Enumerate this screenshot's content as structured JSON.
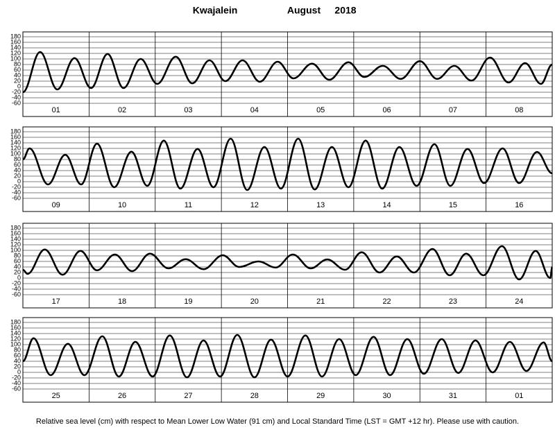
{
  "header": {
    "station": "Kwajalein",
    "month": "August",
    "year": "2018"
  },
  "footer": "Relative sea level (cm) with respect to Mean Lower Low Water (91 cm) and Local Standard Time (LST = GMT +12 hr). Please use with caution.",
  "chart_data": [
    {
      "type": "line",
      "categories": [
        "01",
        "02",
        "03",
        "04",
        "05",
        "06",
        "07",
        "08"
      ],
      "xlim": [
        0,
        8
      ],
      "ylim": [
        -60,
        180
      ],
      "yticks": [
        -60,
        -40,
        -20,
        0,
        20,
        40,
        60,
        80,
        100,
        120,
        140,
        160,
        180
      ],
      "grid": true,
      "color": "#000000",
      "x": [
        0,
        0.26,
        0.52,
        0.78,
        1.03,
        1.28,
        1.52,
        1.78,
        2.03,
        2.31,
        2.56,
        2.82,
        3.06,
        3.32,
        3.58,
        3.85,
        4.09,
        4.37,
        4.63,
        4.92,
        5.16,
        5.44,
        5.71,
        6.0,
        6.26,
        6.52,
        6.78,
        7.06,
        7.34,
        7.59,
        7.83,
        8
      ],
      "values": [
        -20,
        125,
        -10,
        103,
        -5,
        118,
        -5,
        100,
        10,
        108,
        12,
        95,
        20,
        95,
        18,
        90,
        30,
        83,
        25,
        88,
        35,
        75,
        28,
        92,
        28,
        75,
        22,
        105,
        15,
        85,
        10,
        80
      ]
    },
    {
      "type": "line",
      "categories": [
        "09",
        "10",
        "11",
        "12",
        "13",
        "14",
        "15",
        "16"
      ],
      "xlim": [
        0,
        8
      ],
      "ylim": [
        -60,
        180
      ],
      "yticks": [
        -60,
        -40,
        -20,
        0,
        20,
        40,
        60,
        80,
        100,
        120,
        140,
        160,
        180
      ],
      "grid": true,
      "color": "#000000",
      "x": [
        0,
        0.1,
        0.38,
        0.64,
        0.88,
        1.12,
        1.38,
        1.64,
        1.88,
        2.13,
        2.38,
        2.64,
        2.88,
        3.14,
        3.39,
        3.65,
        3.9,
        4.16,
        4.41,
        4.67,
        4.92,
        5.18,
        5.43,
        5.69,
        5.95,
        6.22,
        6.46,
        6.72,
        6.97,
        7.25,
        7.5,
        7.77,
        8
      ],
      "values": [
        80,
        120,
        -10,
        97,
        -10,
        137,
        -20,
        108,
        -15,
        148,
        -25,
        118,
        -20,
        155,
        -30,
        125,
        -25,
        155,
        -28,
        125,
        -20,
        148,
        -25,
        125,
        -15,
        135,
        -15,
        118,
        -5,
        120,
        -5,
        107,
        30
      ]
    },
    {
      "type": "line",
      "categories": [
        "17",
        "18",
        "19",
        "20",
        "21",
        "22",
        "23",
        "24"
      ],
      "xlim": [
        0,
        8
      ],
      "ylim": [
        -60,
        180
      ],
      "yticks": [
        -60,
        -40,
        -20,
        0,
        20,
        40,
        60,
        80,
        100,
        120,
        140,
        160,
        180
      ],
      "grid": true,
      "color": "#000000",
      "x": [
        0,
        0.07,
        0.33,
        0.6,
        0.87,
        1.12,
        1.39,
        1.65,
        1.92,
        2.2,
        2.46,
        2.73,
        3.02,
        3.27,
        3.56,
        3.82,
        4.08,
        4.35,
        4.6,
        4.87,
        5.12,
        5.39,
        5.65,
        5.91,
        6.19,
        6.45,
        6.7,
        6.96,
        7.24,
        7.5,
        7.75,
        7.97,
        8
      ],
      "values": [
        30,
        15,
        103,
        12,
        98,
        28,
        85,
        25,
        88,
        35,
        68,
        32,
        82,
        40,
        60,
        38,
        85,
        35,
        67,
        30,
        93,
        20,
        78,
        20,
        105,
        10,
        88,
        10,
        115,
        -5,
        98,
        0,
        40
      ]
    },
    {
      "type": "line",
      "categories": [
        "25",
        "26",
        "27",
        "28",
        "29",
        "30",
        "31",
        "01"
      ],
      "xlim": [
        0,
        8
      ],
      "ylim": [
        -60,
        180
      ],
      "yticks": [
        -60,
        -40,
        -20,
        0,
        20,
        40,
        60,
        80,
        100,
        120,
        140,
        160,
        180
      ],
      "grid": true,
      "color": "#000000",
      "x": [
        0,
        0.16,
        0.42,
        0.68,
        0.93,
        1.2,
        1.45,
        1.7,
        1.96,
        2.22,
        2.48,
        2.73,
        2.98,
        3.24,
        3.5,
        3.75,
        4.0,
        4.27,
        4.52,
        4.78,
        5.03,
        5.3,
        5.55,
        5.81,
        6.06,
        6.33,
        6.58,
        6.84,
        7.1,
        7.36,
        7.61,
        7.87,
        8
      ],
      "values": [
        40,
        123,
        -10,
        103,
        -10,
        130,
        -15,
        110,
        -15,
        133,
        -18,
        115,
        -15,
        135,
        -18,
        118,
        -15,
        133,
        -15,
        120,
        -10,
        128,
        -10,
        120,
        -5,
        120,
        -2,
        115,
        0,
        110,
        5,
        108,
        40
      ]
    }
  ]
}
